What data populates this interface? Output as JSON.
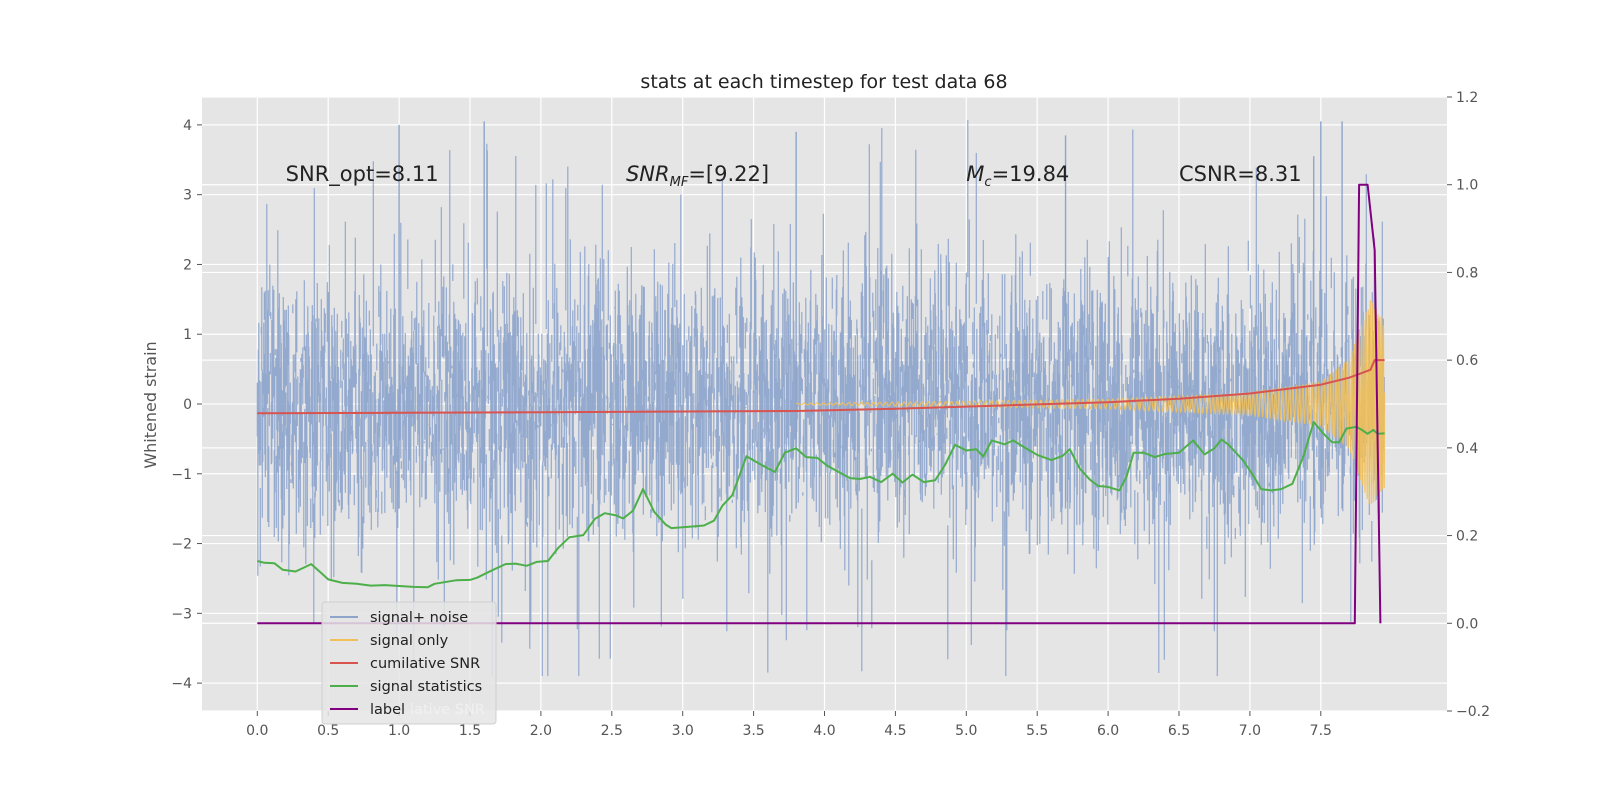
{
  "chart_data": {
    "type": "line",
    "title": "stats at each timestep for test data 68",
    "ylabel": "Whitened strain",
    "y2label": "",
    "xlim": [
      -0.39,
      8.39
    ],
    "ylim": [
      -4.4,
      4.4
    ],
    "y2lim": [
      -0.2,
      1.2
    ],
    "x_ticks": [
      0.0,
      0.5,
      1.0,
      1.5,
      2.0,
      2.5,
      3.0,
      3.5,
      4.0,
      4.5,
      5.0,
      5.5,
      6.0,
      6.5,
      7.0,
      7.5
    ],
    "x_tick_labels": [
      "0.0",
      "0.5",
      "1.0",
      "1.5",
      "2.0",
      "2.5",
      "3.0",
      "3.5",
      "4.0",
      "4.5",
      "5.0",
      "5.5",
      "6.0",
      "6.5",
      "7.0",
      "7.5"
    ],
    "y_ticks": [
      4,
      3,
      2,
      1,
      0,
      -1,
      -2,
      -3,
      -4
    ],
    "y_tick_labels": [
      "4",
      "3",
      "2",
      "1",
      "0",
      "−1",
      "−2",
      "−3",
      "−4"
    ],
    "y2_ticks": [
      1.2,
      1.0,
      0.8,
      0.6,
      0.4,
      0.2,
      0.0,
      -0.2
    ],
    "y2_tick_labels": [
      "1.2",
      "1.0",
      "0.8",
      "0.6",
      "0.4",
      "0.2",
      "0.0",
      "−0.2"
    ],
    "grid": true,
    "legend_position": "lower-left",
    "annotations": [
      {
        "label": "SNR_opt=8.11",
        "x": 0.2,
        "y": 3.3
      },
      {
        "label": "SNR_MF=[9.22]",
        "x": 2.6,
        "y": 3.3
      },
      {
        "label": "M_c=19.84",
        "x": 5.0,
        "y": 3.3
      },
      {
        "label": "CSNR=8.31",
        "x": 6.5,
        "y": 3.3
      }
    ],
    "series": [
      {
        "name": "signal+ noise",
        "axis": "left",
        "color": "#8ea5cb",
        "noise_envelope": {
          "x_start": 0.0,
          "x_end": 7.95,
          "typical_amplitude": 2.2,
          "peak_values": [
            4.0,
            4.05,
            3.9,
            3.85,
            3.55,
            4.05,
            4.05
          ]
        }
      },
      {
        "name": "signal only",
        "axis": "left",
        "color": "#f2c05a",
        "chirp": {
          "x_start": 3.8,
          "x_end": 7.95,
          "envelope_x": [
            3.8,
            5.0,
            6.0,
            7.0,
            7.5,
            7.7,
            7.85,
            7.95
          ],
          "envelope_amp": [
            0.01,
            0.04,
            0.07,
            0.16,
            0.32,
            0.65,
            1.5,
            1.2
          ]
        }
      },
      {
        "name": "cumilative SNR",
        "axis": "right",
        "color": "#d9534f",
        "x": [
          0.0,
          1.0,
          2.0,
          3.0,
          3.8,
          4.5,
          5.0,
          5.5,
          6.0,
          6.5,
          7.0,
          7.5,
          7.7,
          7.85,
          7.88,
          7.95
        ],
        "y": [
          0.479,
          0.48,
          0.481,
          0.483,
          0.484,
          0.489,
          0.494,
          0.499,
          0.504,
          0.512,
          0.524,
          0.544,
          0.56,
          0.578,
          0.6,
          0.6
        ]
      },
      {
        "name": "signal statistics",
        "axis": "right",
        "color": "#4daf4a",
        "x": [
          0.0,
          0.05,
          0.12,
          0.18,
          0.27,
          0.38,
          0.45,
          0.5,
          0.6,
          0.7,
          0.8,
          0.9,
          1.0,
          1.1,
          1.2,
          1.25,
          1.4,
          1.5,
          1.55,
          1.65,
          1.75,
          1.82,
          1.9,
          1.97,
          2.05,
          2.12,
          2.2,
          2.3,
          2.38,
          2.45,
          2.53,
          2.58,
          2.65,
          2.72,
          2.8,
          2.88,
          2.92,
          3.0,
          3.08,
          3.15,
          3.22,
          3.28,
          3.35,
          3.45,
          3.55,
          3.65,
          3.72,
          3.8,
          3.87,
          3.95,
          4.02,
          4.1,
          4.18,
          4.25,
          4.32,
          4.4,
          4.48,
          4.55,
          4.62,
          4.7,
          4.78,
          4.85,
          4.92,
          5.0,
          5.07,
          5.12,
          5.18,
          5.27,
          5.33,
          5.42,
          5.5,
          5.6,
          5.68,
          5.73,
          5.8,
          5.87,
          5.93,
          6.0,
          6.08,
          6.13,
          6.18,
          6.25,
          6.33,
          6.4,
          6.5,
          6.6,
          6.68,
          6.75,
          6.8,
          6.85,
          6.95,
          7.02,
          7.08,
          7.15,
          7.22,
          7.3,
          7.38,
          7.45,
          7.52,
          7.58,
          7.63,
          7.68,
          7.75,
          7.79,
          7.83,
          7.87,
          7.9,
          7.95
        ],
        "y": [
          0.142,
          0.138,
          0.137,
          0.122,
          0.118,
          0.135,
          0.115,
          0.1,
          0.092,
          0.09,
          0.086,
          0.087,
          0.085,
          0.083,
          0.082,
          0.09,
          0.098,
          0.099,
          0.104,
          0.12,
          0.135,
          0.136,
          0.131,
          0.14,
          0.142,
          0.171,
          0.196,
          0.201,
          0.238,
          0.251,
          0.246,
          0.239,
          0.257,
          0.306,
          0.254,
          0.225,
          0.217,
          0.219,
          0.221,
          0.223,
          0.234,
          0.268,
          0.292,
          0.381,
          0.362,
          0.345,
          0.389,
          0.399,
          0.379,
          0.377,
          0.359,
          0.345,
          0.331,
          0.329,
          0.334,
          0.322,
          0.341,
          0.321,
          0.339,
          0.322,
          0.326,
          0.361,
          0.407,
          0.394,
          0.397,
          0.38,
          0.417,
          0.408,
          0.417,
          0.399,
          0.384,
          0.372,
          0.382,
          0.397,
          0.353,
          0.328,
          0.313,
          0.311,
          0.303,
          0.334,
          0.389,
          0.389,
          0.379,
          0.386,
          0.389,
          0.417,
          0.385,
          0.399,
          0.419,
          0.407,
          0.372,
          0.339,
          0.306,
          0.303,
          0.306,
          0.318,
          0.383,
          0.459,
          0.432,
          0.413,
          0.413,
          0.444,
          0.448,
          0.441,
          0.432,
          0.441,
          0.432,
          0.433
        ]
      },
      {
        "name": "label",
        "axis": "right",
        "color": "#800080",
        "x": [
          0.0,
          7.74,
          7.77,
          7.83,
          7.88,
          7.92
        ],
        "y": [
          0.0,
          0.0,
          1.0,
          1.0,
          0.85,
          0.0
        ]
      }
    ],
    "legend_entries": [
      "signal+ noise",
      "signal only",
      "cumilative SNR",
      "signal statistics",
      "label"
    ],
    "legend_ghost_text": "lative SNR"
  }
}
